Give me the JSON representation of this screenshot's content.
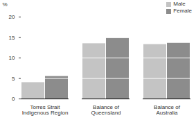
{
  "chart_data": {
    "type": "bar",
    "categories": [
      "Torres Strait Indigenous Region",
      "Balance of Queensland",
      "Balance of Australia"
    ],
    "series": [
      {
        "name": "Male",
        "color": "#c4c4c4",
        "values": [
          4.0,
          13.5,
          13.3
        ]
      },
      {
        "name": "Female",
        "color": "#8c8c8c",
        "values": [
          5.5,
          14.8,
          13.6
        ]
      }
    ],
    "ylabel": "%",
    "ylim": [
      0,
      20
    ],
    "yticks": [
      0,
      5,
      10,
      15,
      20
    ],
    "grid": true,
    "legend": "top-right"
  }
}
